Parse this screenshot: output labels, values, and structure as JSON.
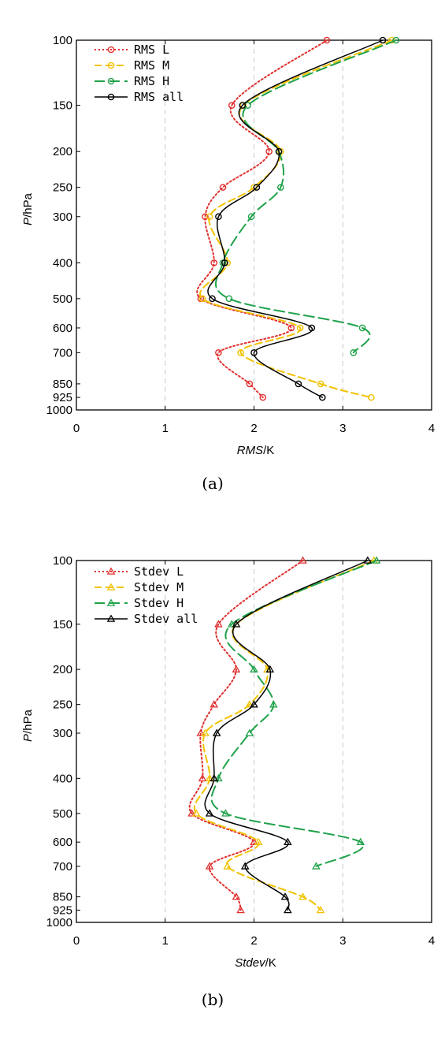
{
  "chart_data": [
    {
      "type": "line",
      "caption": "(a)",
      "xlabel_italic": "RMS",
      "xlabel_unit": "/K",
      "ylabel_italic": "P",
      "ylabel_unit": "/hPa",
      "xlim": [
        0,
        4
      ],
      "x_ticks": [
        "0",
        "1",
        "2",
        "3",
        "4"
      ],
      "y_scale": "log",
      "y_reversed": true,
      "y_ticks": [
        "100",
        "150",
        "200",
        "250",
        "300",
        "400",
        "500",
        "600",
        "700",
        "850",
        "925",
        "1000"
      ],
      "grid_x": true,
      "legend_position": "top-left",
      "marker": "circle",
      "series": [
        {
          "name": "RMS L",
          "color": "#e03030",
          "dash": "dotted",
          "points": [
            [
              2.82,
              100
            ],
            [
              1.75,
              150
            ],
            [
              2.17,
              200
            ],
            [
              1.65,
              250
            ],
            [
              1.45,
              300
            ],
            [
              1.55,
              400
            ],
            [
              1.4,
              500
            ],
            [
              2.42,
              600
            ],
            [
              1.6,
              700
            ],
            [
              1.95,
              850
            ],
            [
              2.1,
              925
            ]
          ]
        },
        {
          "name": "RMS M",
          "color": "#f2c200",
          "dash": "dashed",
          "points": [
            [
              3.55,
              100
            ],
            [
              1.88,
              150
            ],
            [
              2.3,
              200
            ],
            [
              2.0,
              250
            ],
            [
              1.5,
              300
            ],
            [
              1.7,
              400
            ],
            [
              1.42,
              500
            ],
            [
              2.52,
              600
            ],
            [
              1.85,
              700
            ],
            [
              2.75,
              850
            ],
            [
              3.32,
              925
            ]
          ]
        },
        {
          "name": "RMS H",
          "color": "#1fa24a",
          "dash": "longdash",
          "points": [
            [
              3.6,
              100
            ],
            [
              1.93,
              150
            ],
            [
              2.28,
              200
            ],
            [
              2.3,
              250
            ],
            [
              1.97,
              300
            ],
            [
              1.65,
              400
            ],
            [
              1.72,
              500
            ],
            [
              3.22,
              600
            ],
            [
              3.12,
              700
            ]
          ]
        },
        {
          "name": "RMS all",
          "color": "#000000",
          "dash": "solid",
          "points": [
            [
              3.45,
              100
            ],
            [
              1.87,
              150
            ],
            [
              2.28,
              200
            ],
            [
              2.03,
              250
            ],
            [
              1.6,
              300
            ],
            [
              1.67,
              400
            ],
            [
              1.53,
              500
            ],
            [
              2.65,
              600
            ],
            [
              2.0,
              700
            ],
            [
              2.5,
              850
            ],
            [
              2.77,
              925
            ]
          ]
        }
      ]
    },
    {
      "type": "line",
      "caption": "(b)",
      "xlabel_italic": "Stdev",
      "xlabel_unit": "/K",
      "ylabel_italic": "P",
      "ylabel_unit": "/hPa",
      "xlim": [
        0,
        4
      ],
      "x_ticks": [
        "0",
        "1",
        "2",
        "3",
        "4"
      ],
      "y_scale": "log",
      "y_reversed": true,
      "y_ticks": [
        "100",
        "150",
        "200",
        "250",
        "300",
        "400",
        "500",
        "600",
        "700",
        "850",
        "925",
        "1000"
      ],
      "grid_x": true,
      "legend_position": "top-left",
      "marker": "triangle",
      "series": [
        {
          "name": "Stdev L",
          "color": "#e03030",
          "dash": "dotted",
          "points": [
            [
              2.55,
              100
            ],
            [
              1.6,
              150
            ],
            [
              1.8,
              200
            ],
            [
              1.55,
              250
            ],
            [
              1.4,
              300
            ],
            [
              1.42,
              400
            ],
            [
              1.3,
              500
            ],
            [
              2.0,
              600
            ],
            [
              1.5,
              700
            ],
            [
              1.8,
              850
            ],
            [
              1.85,
              925
            ]
          ]
        },
        {
          "name": "Stdev M",
          "color": "#f2c200",
          "dash": "dashed",
          "points": [
            [
              3.35,
              100
            ],
            [
              1.8,
              150
            ],
            [
              2.15,
              200
            ],
            [
              1.95,
              250
            ],
            [
              1.45,
              300
            ],
            [
              1.5,
              400
            ],
            [
              1.35,
              500
            ],
            [
              2.05,
              600
            ],
            [
              1.7,
              700
            ],
            [
              2.55,
              850
            ],
            [
              2.75,
              925
            ]
          ]
        },
        {
          "name": "Stdev H",
          "color": "#1fa24a",
          "dash": "longdash",
          "points": [
            [
              3.38,
              100
            ],
            [
              1.75,
              150
            ],
            [
              2.0,
              200
            ],
            [
              2.22,
              250
            ],
            [
              1.95,
              300
            ],
            [
              1.6,
              400
            ],
            [
              1.68,
              500
            ],
            [
              3.2,
              600
            ],
            [
              2.7,
              700
            ]
          ]
        },
        {
          "name": "Stdev all",
          "color": "#000000",
          "dash": "solid",
          "points": [
            [
              3.28,
              100
            ],
            [
              1.8,
              150
            ],
            [
              2.18,
              200
            ],
            [
              2.0,
              250
            ],
            [
              1.58,
              300
            ],
            [
              1.55,
              400
            ],
            [
              1.5,
              500
            ],
            [
              2.38,
              600
            ],
            [
              1.9,
              700
            ],
            [
              2.35,
              850
            ],
            [
              2.38,
              925
            ]
          ]
        }
      ]
    }
  ]
}
